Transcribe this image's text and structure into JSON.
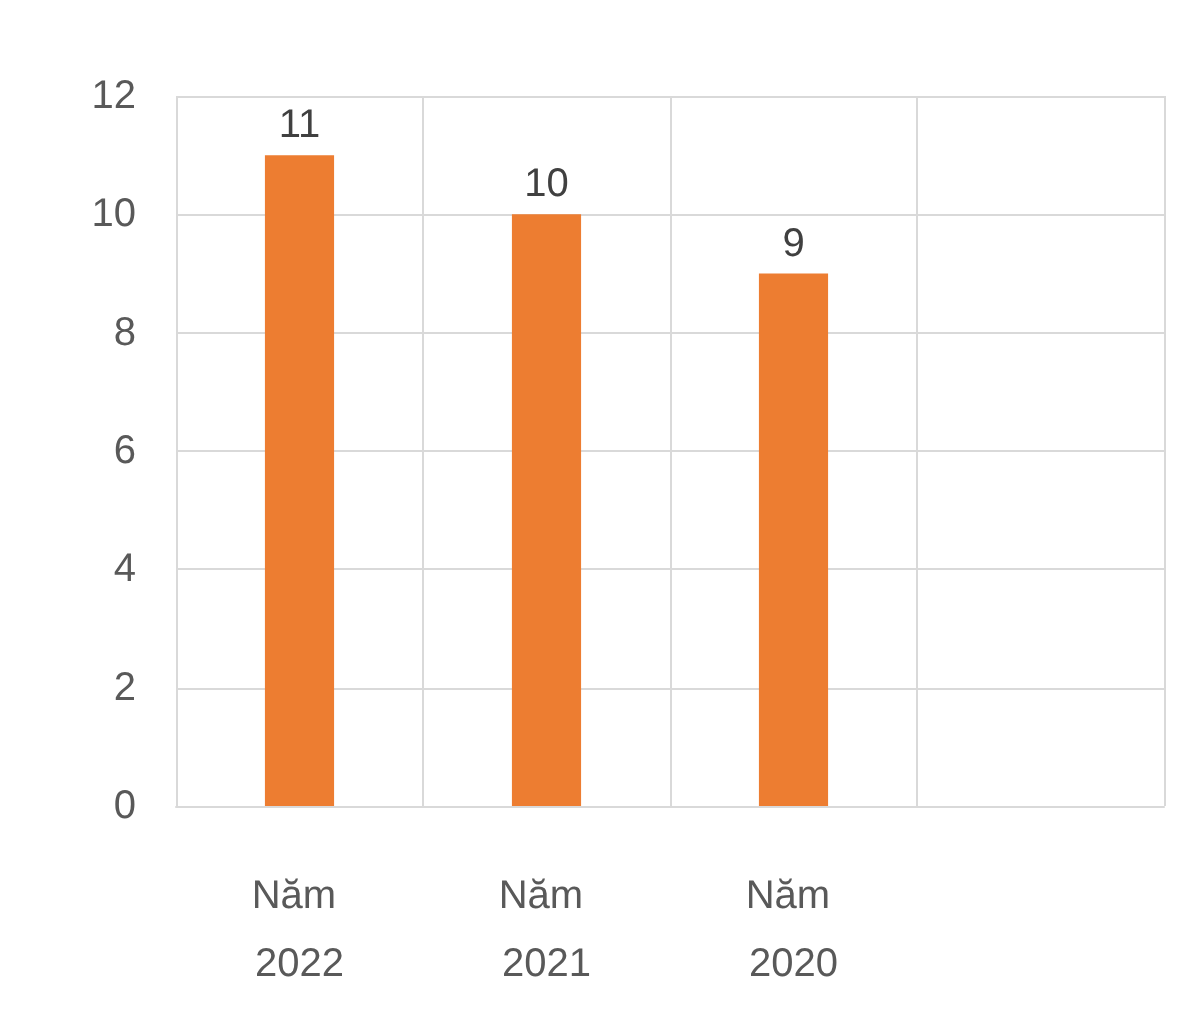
{
  "chart_data": {
    "type": "bar",
    "categories": [
      "Năm 2022",
      "Năm 2021",
      "Năm 2020",
      null
    ],
    "values": [
      11,
      10,
      9,
      null
    ],
    "color": "#ed7d31",
    "ylim": [
      0,
      12
    ],
    "yticks": [
      0,
      2,
      4,
      6,
      8,
      10,
      12
    ],
    "grid": true,
    "data_labels": true
  }
}
